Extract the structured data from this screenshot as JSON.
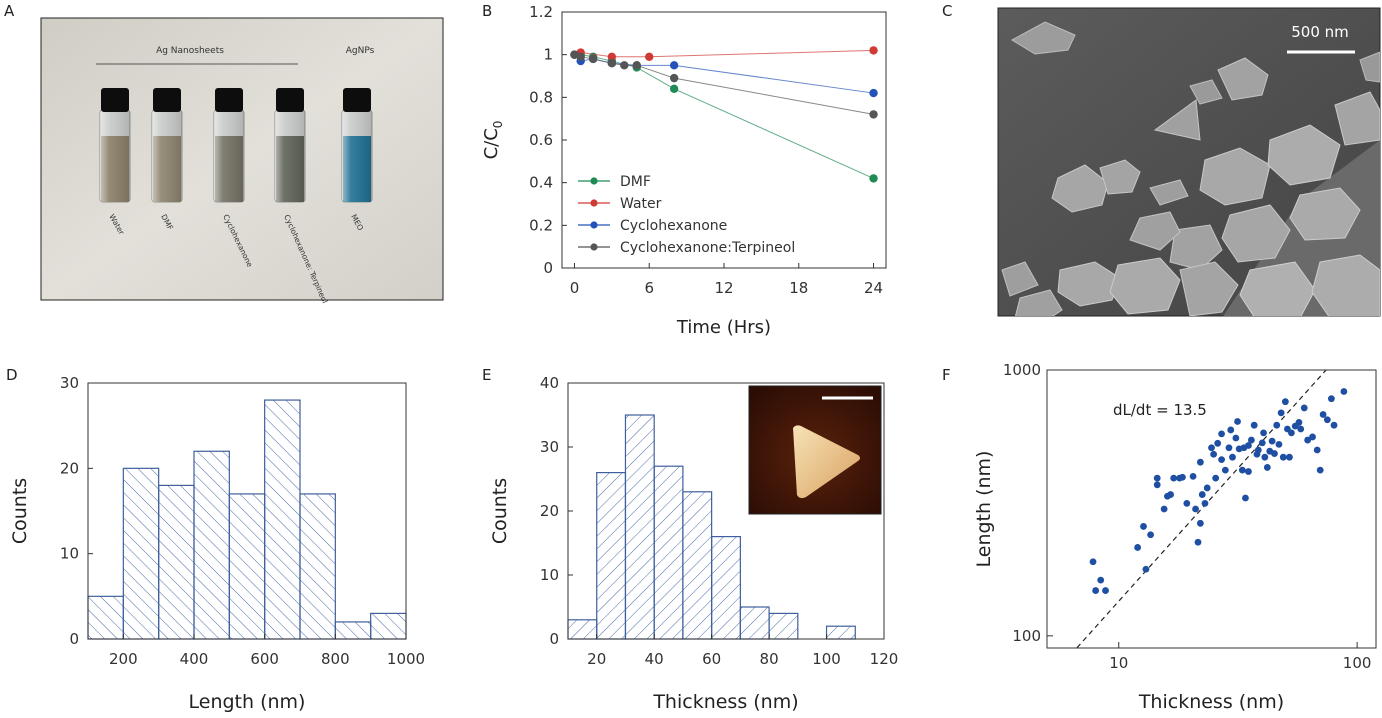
{
  "panels": {
    "A": {
      "label": "A"
    },
    "B": {
      "label": "B"
    },
    "C": {
      "label": "C"
    },
    "D": {
      "label": "D"
    },
    "E": {
      "label": "E"
    },
    "F": {
      "label": "F"
    }
  },
  "photo": {
    "group1_label": "Ag Nanosheets",
    "group2_label": "AgNPs",
    "vials": [
      {
        "label": "Water",
        "color": "#8a7e66"
      },
      {
        "label": "DMF",
        "color": "#8c826c"
      },
      {
        "label": "Cyclohexanone",
        "color": "#737063"
      },
      {
        "label": "Cyclohexanone: Terpineol",
        "color": "#5e6256"
      },
      {
        "label": "MEO",
        "color": "#1d6f93"
      }
    ]
  },
  "sem": {
    "scale_bar": "500 nm"
  },
  "chart_data": [
    {
      "panel": "B",
      "type": "line",
      "xlabel": "Time (Hrs)",
      "ylabel": "C/C",
      "ylabel_sub": "0",
      "xlim": [
        -1,
        25
      ],
      "ylim": [
        0,
        1.2
      ],
      "xticks": [
        0,
        6,
        12,
        18,
        24
      ],
      "yticks": [
        0,
        0.2,
        0.4,
        0.6,
        0.8,
        1,
        1.2
      ],
      "legend_position": "bottom-left",
      "series": [
        {
          "name": "DMF",
          "color": "#1e8a54",
          "x": [
            0,
            0.5,
            1.5,
            3,
            5,
            8,
            24
          ],
          "y": [
            1.0,
            1.0,
            0.99,
            0.97,
            0.94,
            0.84,
            0.42
          ]
        },
        {
          "name": "Water",
          "color": "#d03a34",
          "x": [
            0,
            0.5,
            3,
            6,
            24
          ],
          "y": [
            1.0,
            1.01,
            0.99,
            0.99,
            1.02
          ]
        },
        {
          "name": "Cyclohexanone",
          "color": "#2353b8",
          "x": [
            0,
            0.5,
            1.5,
            3,
            5,
            8,
            24
          ],
          "y": [
            1.0,
            0.97,
            0.98,
            0.96,
            0.95,
            0.95,
            0.82
          ]
        },
        {
          "name": "Cyclohexanone:Terpineol",
          "color": "#555555",
          "x": [
            0,
            0.5,
            1.5,
            3,
            4,
            5,
            8,
            24
          ],
          "y": [
            1.0,
            0.99,
            0.98,
            0.96,
            0.95,
            0.95,
            0.89,
            0.72
          ]
        }
      ]
    },
    {
      "panel": "D",
      "type": "bar",
      "xlabel": "Length (nm)",
      "ylabel": "Counts",
      "xlim": [
        100,
        1000
      ],
      "ylim": [
        0,
        30
      ],
      "xticks": [
        200,
        400,
        600,
        800,
        1000
      ],
      "yticks": [
        0,
        10,
        20,
        30
      ],
      "bin_edges": [
        100,
        200,
        300,
        400,
        500,
        600,
        700,
        800,
        900,
        1000
      ],
      "values": [
        5,
        20,
        18,
        22,
        17,
        28,
        17,
        2,
        3
      ]
    },
    {
      "panel": "E",
      "type": "bar",
      "xlabel": "Thickness (nm)",
      "ylabel": "Counts",
      "xlim": [
        10,
        120
      ],
      "ylim": [
        0,
        40
      ],
      "xticks": [
        20,
        40,
        60,
        80,
        100,
        120
      ],
      "yticks": [
        0,
        10,
        20,
        30,
        40
      ],
      "bin_edges": [
        10,
        20,
        30,
        40,
        50,
        60,
        70,
        80,
        90,
        100,
        110
      ],
      "values": [
        3,
        26,
        35,
        27,
        23,
        16,
        5,
        4,
        0,
        2
      ]
    },
    {
      "panel": "F",
      "type": "scatter",
      "xlabel": "Thickness (nm)",
      "ylabel": "Length (nm)",
      "xscale": "log",
      "yscale": "log",
      "xlim": [
        5,
        120
      ],
      "ylim": [
        90,
        1000
      ],
      "xticks": [
        10,
        100
      ],
      "yticks": [
        100,
        1000
      ],
      "annotation": "dL/dt = 13.5",
      "fit_slope": 13.5,
      "color": "#1f4fa3",
      "points": [
        [
          7.8,
          190
        ],
        [
          8,
          148
        ],
        [
          8.4,
          162
        ],
        [
          8.8,
          148
        ],
        [
          12,
          215
        ],
        [
          12.7,
          258
        ],
        [
          13,
          178
        ],
        [
          13.6,
          240
        ],
        [
          14.5,
          370
        ],
        [
          14.5,
          392
        ],
        [
          15.5,
          300
        ],
        [
          16,
          335
        ],
        [
          16.5,
          340
        ],
        [
          17,
          392
        ],
        [
          18,
          392
        ],
        [
          18.5,
          395
        ],
        [
          19.3,
          315
        ],
        [
          20.5,
          398
        ],
        [
          21,
          300
        ],
        [
          21.5,
          225
        ],
        [
          22,
          265
        ],
        [
          22,
          450
        ],
        [
          22.4,
          340
        ],
        [
          23,
          315
        ],
        [
          23.5,
          360
        ],
        [
          24.5,
          510
        ],
        [
          25,
          482
        ],
        [
          25.5,
          392
        ],
        [
          26,
          530
        ],
        [
          27,
          460
        ],
        [
          27,
          575
        ],
        [
          28,
          420
        ],
        [
          29,
          510
        ],
        [
          29.5,
          595
        ],
        [
          30,
          470
        ],
        [
          31,
          555
        ],
        [
          31.5,
          640
        ],
        [
          32,
          505
        ],
        [
          33,
          420
        ],
        [
          33.5,
          510
        ],
        [
          34,
          330
        ],
        [
          35,
          415
        ],
        [
          35,
          520
        ],
        [
          36,
          545
        ],
        [
          37,
          620
        ],
        [
          38,
          482
        ],
        [
          38.5,
          500
        ],
        [
          40,
          532
        ],
        [
          40.5,
          580
        ],
        [
          41,
          470
        ],
        [
          42,
          430
        ],
        [
          43,
          495
        ],
        [
          44,
          540
        ],
        [
          45,
          485
        ],
        [
          46,
          620
        ],
        [
          47,
          525
        ],
        [
          48,
          690
        ],
        [
          49,
          470
        ],
        [
          50,
          760
        ],
        [
          51,
          600
        ],
        [
          52,
          470
        ],
        [
          53,
          580
        ],
        [
          55,
          615
        ],
        [
          57,
          635
        ],
        [
          58,
          600
        ],
        [
          60,
          720
        ],
        [
          62,
          545
        ],
        [
          65,
          560
        ],
        [
          68,
          500
        ],
        [
          70,
          420
        ],
        [
          72,
          680
        ],
        [
          75,
          650
        ],
        [
          78,
          780
        ],
        [
          80,
          620
        ],
        [
          88,
          830
        ]
      ]
    }
  ]
}
